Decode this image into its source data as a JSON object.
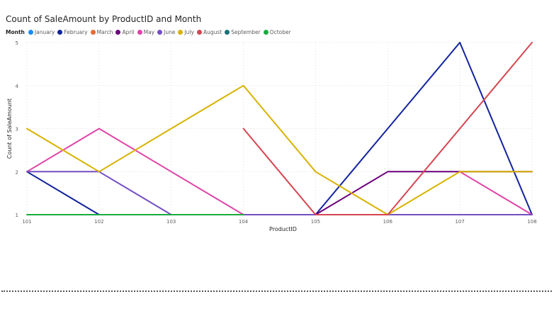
{
  "chart_data": {
    "type": "line",
    "title": "Count of SaleAmount by ProductID and Month",
    "xlabel": "ProductID",
    "ylabel": "Count of SaleAmount",
    "legend_title": "Month",
    "legend_position": "top-left",
    "grid": true,
    "categories": [
      "101",
      "102",
      "103",
      "104",
      "105",
      "106",
      "107",
      "108"
    ],
    "ylim": [
      1,
      5
    ],
    "yticks": [
      "1",
      "2",
      "3",
      "4",
      "5"
    ],
    "series": [
      {
        "name": "January",
        "color": "#118DFF",
        "values": [
          null,
          null,
          null,
          null,
          null,
          null,
          null,
          null
        ]
      },
      {
        "name": "February",
        "color": "#12239E",
        "values": [
          2,
          1,
          1,
          1,
          1,
          3,
          5,
          1
        ]
      },
      {
        "name": "March",
        "color": "#E66C37",
        "values": [
          2,
          null,
          null,
          null,
          1,
          null,
          null,
          null
        ]
      },
      {
        "name": "April",
        "color": "#6B007B",
        "values": [
          null,
          null,
          null,
          null,
          1,
          2,
          2,
          2
        ]
      },
      {
        "name": "May",
        "color": "#E044A7",
        "values": [
          2,
          3,
          2,
          1,
          1,
          null,
          2,
          1
        ]
      },
      {
        "name": "June",
        "color": "#744EC2",
        "values": [
          2,
          2,
          1,
          1,
          1,
          1,
          1,
          1
        ]
      },
      {
        "name": "July",
        "color": "#D9B300",
        "values": [
          3,
          2,
          3,
          4,
          2,
          1,
          2,
          2
        ]
      },
      {
        "name": "August",
        "color": "#D64550",
        "values": [
          1,
          null,
          null,
          3,
          1,
          1,
          3,
          5
        ]
      },
      {
        "name": "September",
        "color": "#197278",
        "values": [
          null,
          1,
          1,
          1,
          null,
          null,
          3,
          null
        ]
      },
      {
        "name": "October",
        "color": "#1AAB40",
        "values": [
          1,
          1,
          1,
          1,
          null,
          null,
          null,
          null
        ]
      }
    ]
  }
}
